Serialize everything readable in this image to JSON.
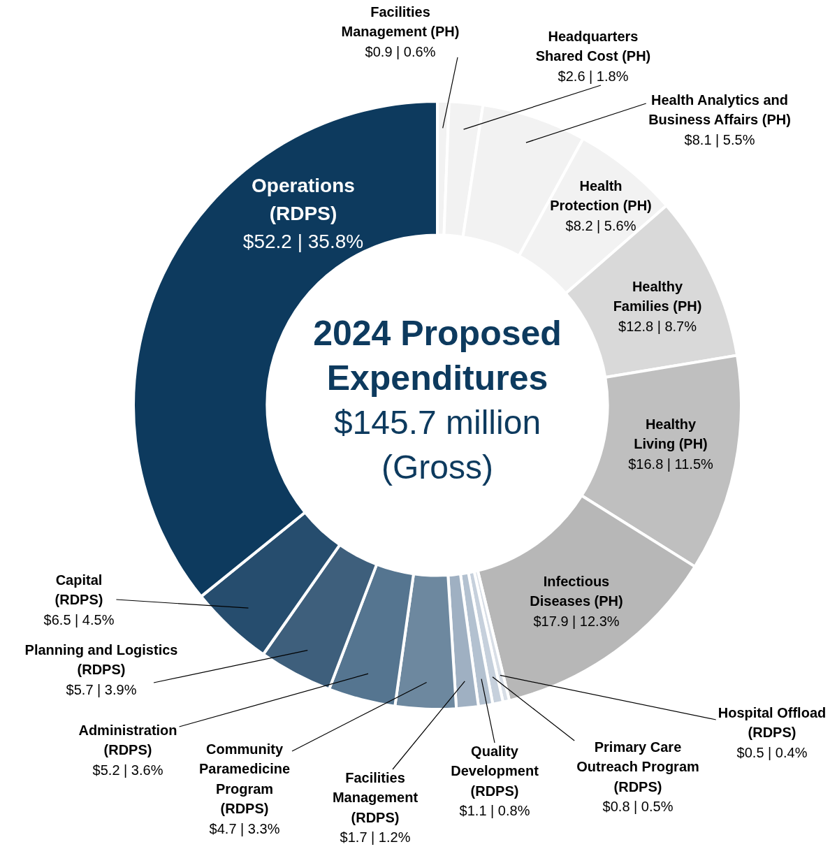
{
  "chart_data": {
    "type": "donut",
    "title": "2024 Proposed Expenditures",
    "subtitle": "$145.7 million (Gross)",
    "categories": [
      "Facilities Management (PH)",
      "Headquarters Shared Cost (PH)",
      "Health Analytics and Business Affairs (PH)",
      "Health Protection (PH)",
      "Healthy Families (PH)",
      "Healthy Living (PH)",
      "Infectious Diseases (PH)",
      "Hospital Offload (RDPS)",
      "Primary Care Outreach Program (RDPS)",
      "Quality Development (RDPS)",
      "Facilities Management (RDPS)",
      "Community Paramedicine Program (RDPS)",
      "Administration (RDPS)",
      "Planning and Logistics (RDPS)",
      "Capital (RDPS)",
      "Operations (RDPS)"
    ],
    "values": [
      0.9,
      2.6,
      8.1,
      8.2,
      12.8,
      16.8,
      17.9,
      0.5,
      0.8,
      1.1,
      1.7,
      4.7,
      5.2,
      5.7,
      6.5,
      52.2
    ],
    "value_labels": [
      "$0.9 | 0.6%",
      "$2.6 | 1.8%",
      "$8.1 | 5.5%",
      "$8.2 | 5.6%",
      "$12.8 | 8.7%",
      "$16.8 | 11.5%",
      "$17.9 | 12.3%",
      "$0.5 | 0.4%",
      "$0.8 | 0.5%",
      "$1.1 | 0.8%",
      "$1.7 | 1.2%",
      "$4.7 | 3.3%",
      "$5.2 | 3.6%",
      "$5.7 | 3.9%",
      "$6.5 | 4.5%",
      "$52.2 | 35.8%"
    ],
    "colors": [
      "#f2f2f2",
      "#f2f2f2",
      "#f2f2f2",
      "#f2f2f2",
      "#d9d9d9",
      "#bfbfbf",
      "#b7b7b7",
      "#d8dee6",
      "#c6d0dc",
      "#b3c1d0",
      "#9fb0c2",
      "#6d889f",
      "#557590",
      "#3e5f7c",
      "#264d6e",
      "#0d3a5e"
    ],
    "legend": false
  }
}
